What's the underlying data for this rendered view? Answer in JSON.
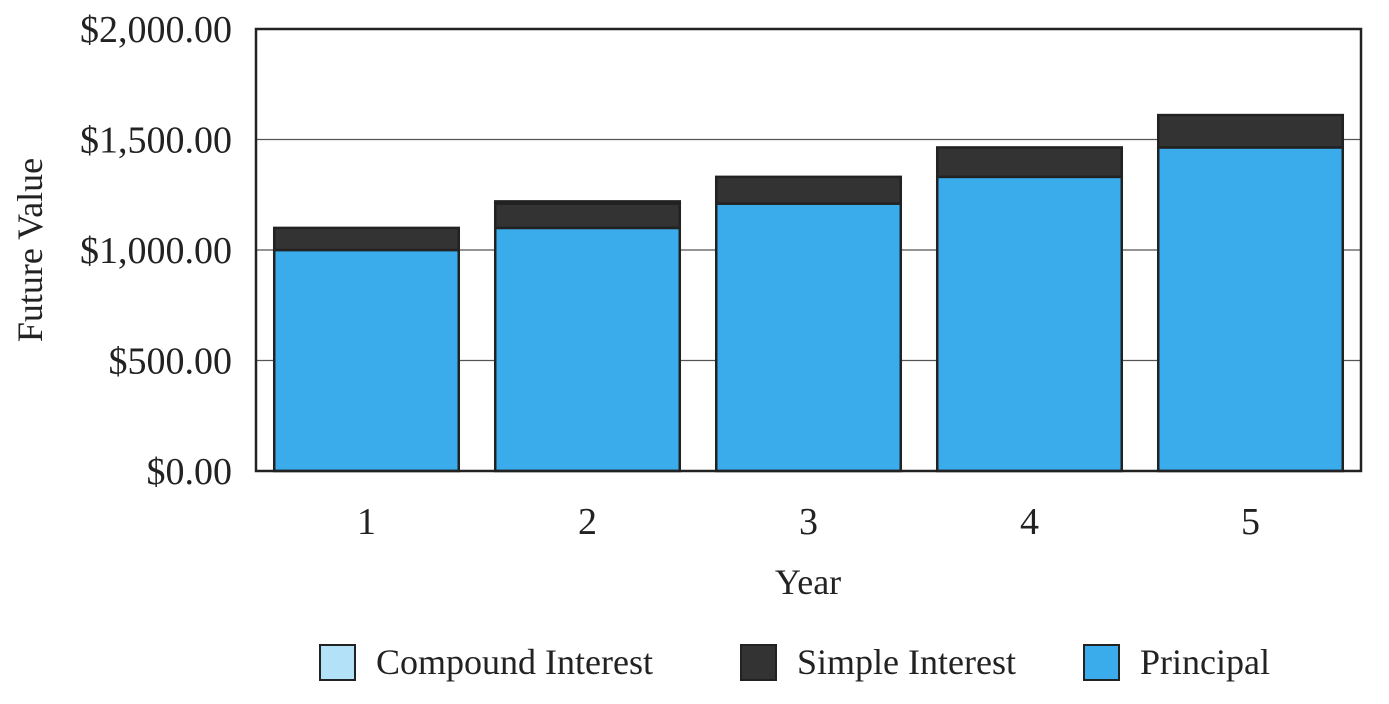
{
  "chart_data": {
    "type": "bar",
    "stacked": true,
    "title": "",
    "xlabel": "Year",
    "ylabel": "Future Value",
    "categories": [
      "1",
      "2",
      "3",
      "4",
      "5"
    ],
    "ylim": [
      0,
      2000
    ],
    "yticks": [
      0,
      500,
      1000,
      1500,
      2000
    ],
    "ytick_labels": [
      "$0.00",
      "$500.00",
      "$1,000.00",
      "$1,500.00",
      "$2,000.00"
    ],
    "series": [
      {
        "name": "Principal",
        "color": "#3aacec",
        "values": [
          1000,
          1100,
          1210,
          1331,
          1464.1
        ]
      },
      {
        "name": "Simple Interest",
        "color": "#333333",
        "values": [
          100,
          110,
          121,
          133.1,
          146.41
        ]
      },
      {
        "name": "Compound Interest",
        "color": "#b3e1f8",
        "values": [
          0,
          10,
          0,
          0,
          0
        ]
      }
    ],
    "legend": {
      "position": "bottom",
      "order": [
        "Compound Interest",
        "Simple Interest",
        "Principal"
      ]
    },
    "grid": true
  }
}
